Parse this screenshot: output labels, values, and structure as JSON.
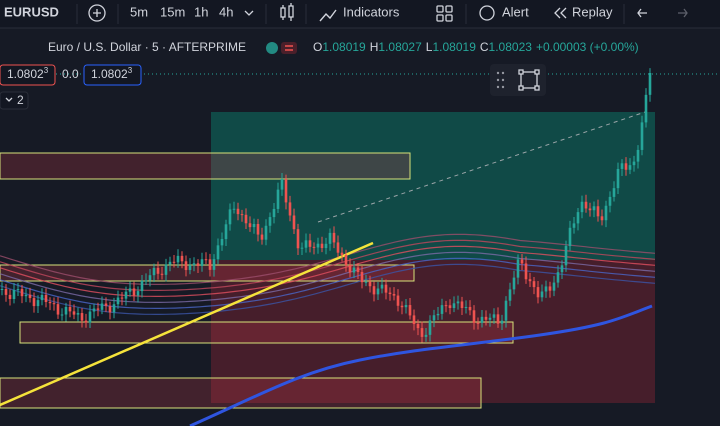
{
  "toolbar": {
    "symbol": "EURUSD",
    "intervals": [
      "5m",
      "15m",
      "1h",
      "4h"
    ],
    "indicators": "Indicators",
    "alert": "Alert",
    "replay": "Replay"
  },
  "legend": {
    "title": "Euro / U.S. Dollar · 5 · AFTERPRIME",
    "ohlc": [
      {
        "key": "O",
        "value": "1.08019"
      },
      {
        "key": "H",
        "value": "1.08027"
      },
      {
        "key": "L",
        "value": "1.08019"
      },
      {
        "key": "C",
        "value": "1.08023"
      }
    ],
    "change": "+0.00003 (+0.00%)"
  },
  "order_panel": {
    "sell": "1.0802",
    "sell_sup": "3",
    "spread": "0.0",
    "buy": "1.0802",
    "buy_sup": "3"
  },
  "indicators_toggle": "2"
}
